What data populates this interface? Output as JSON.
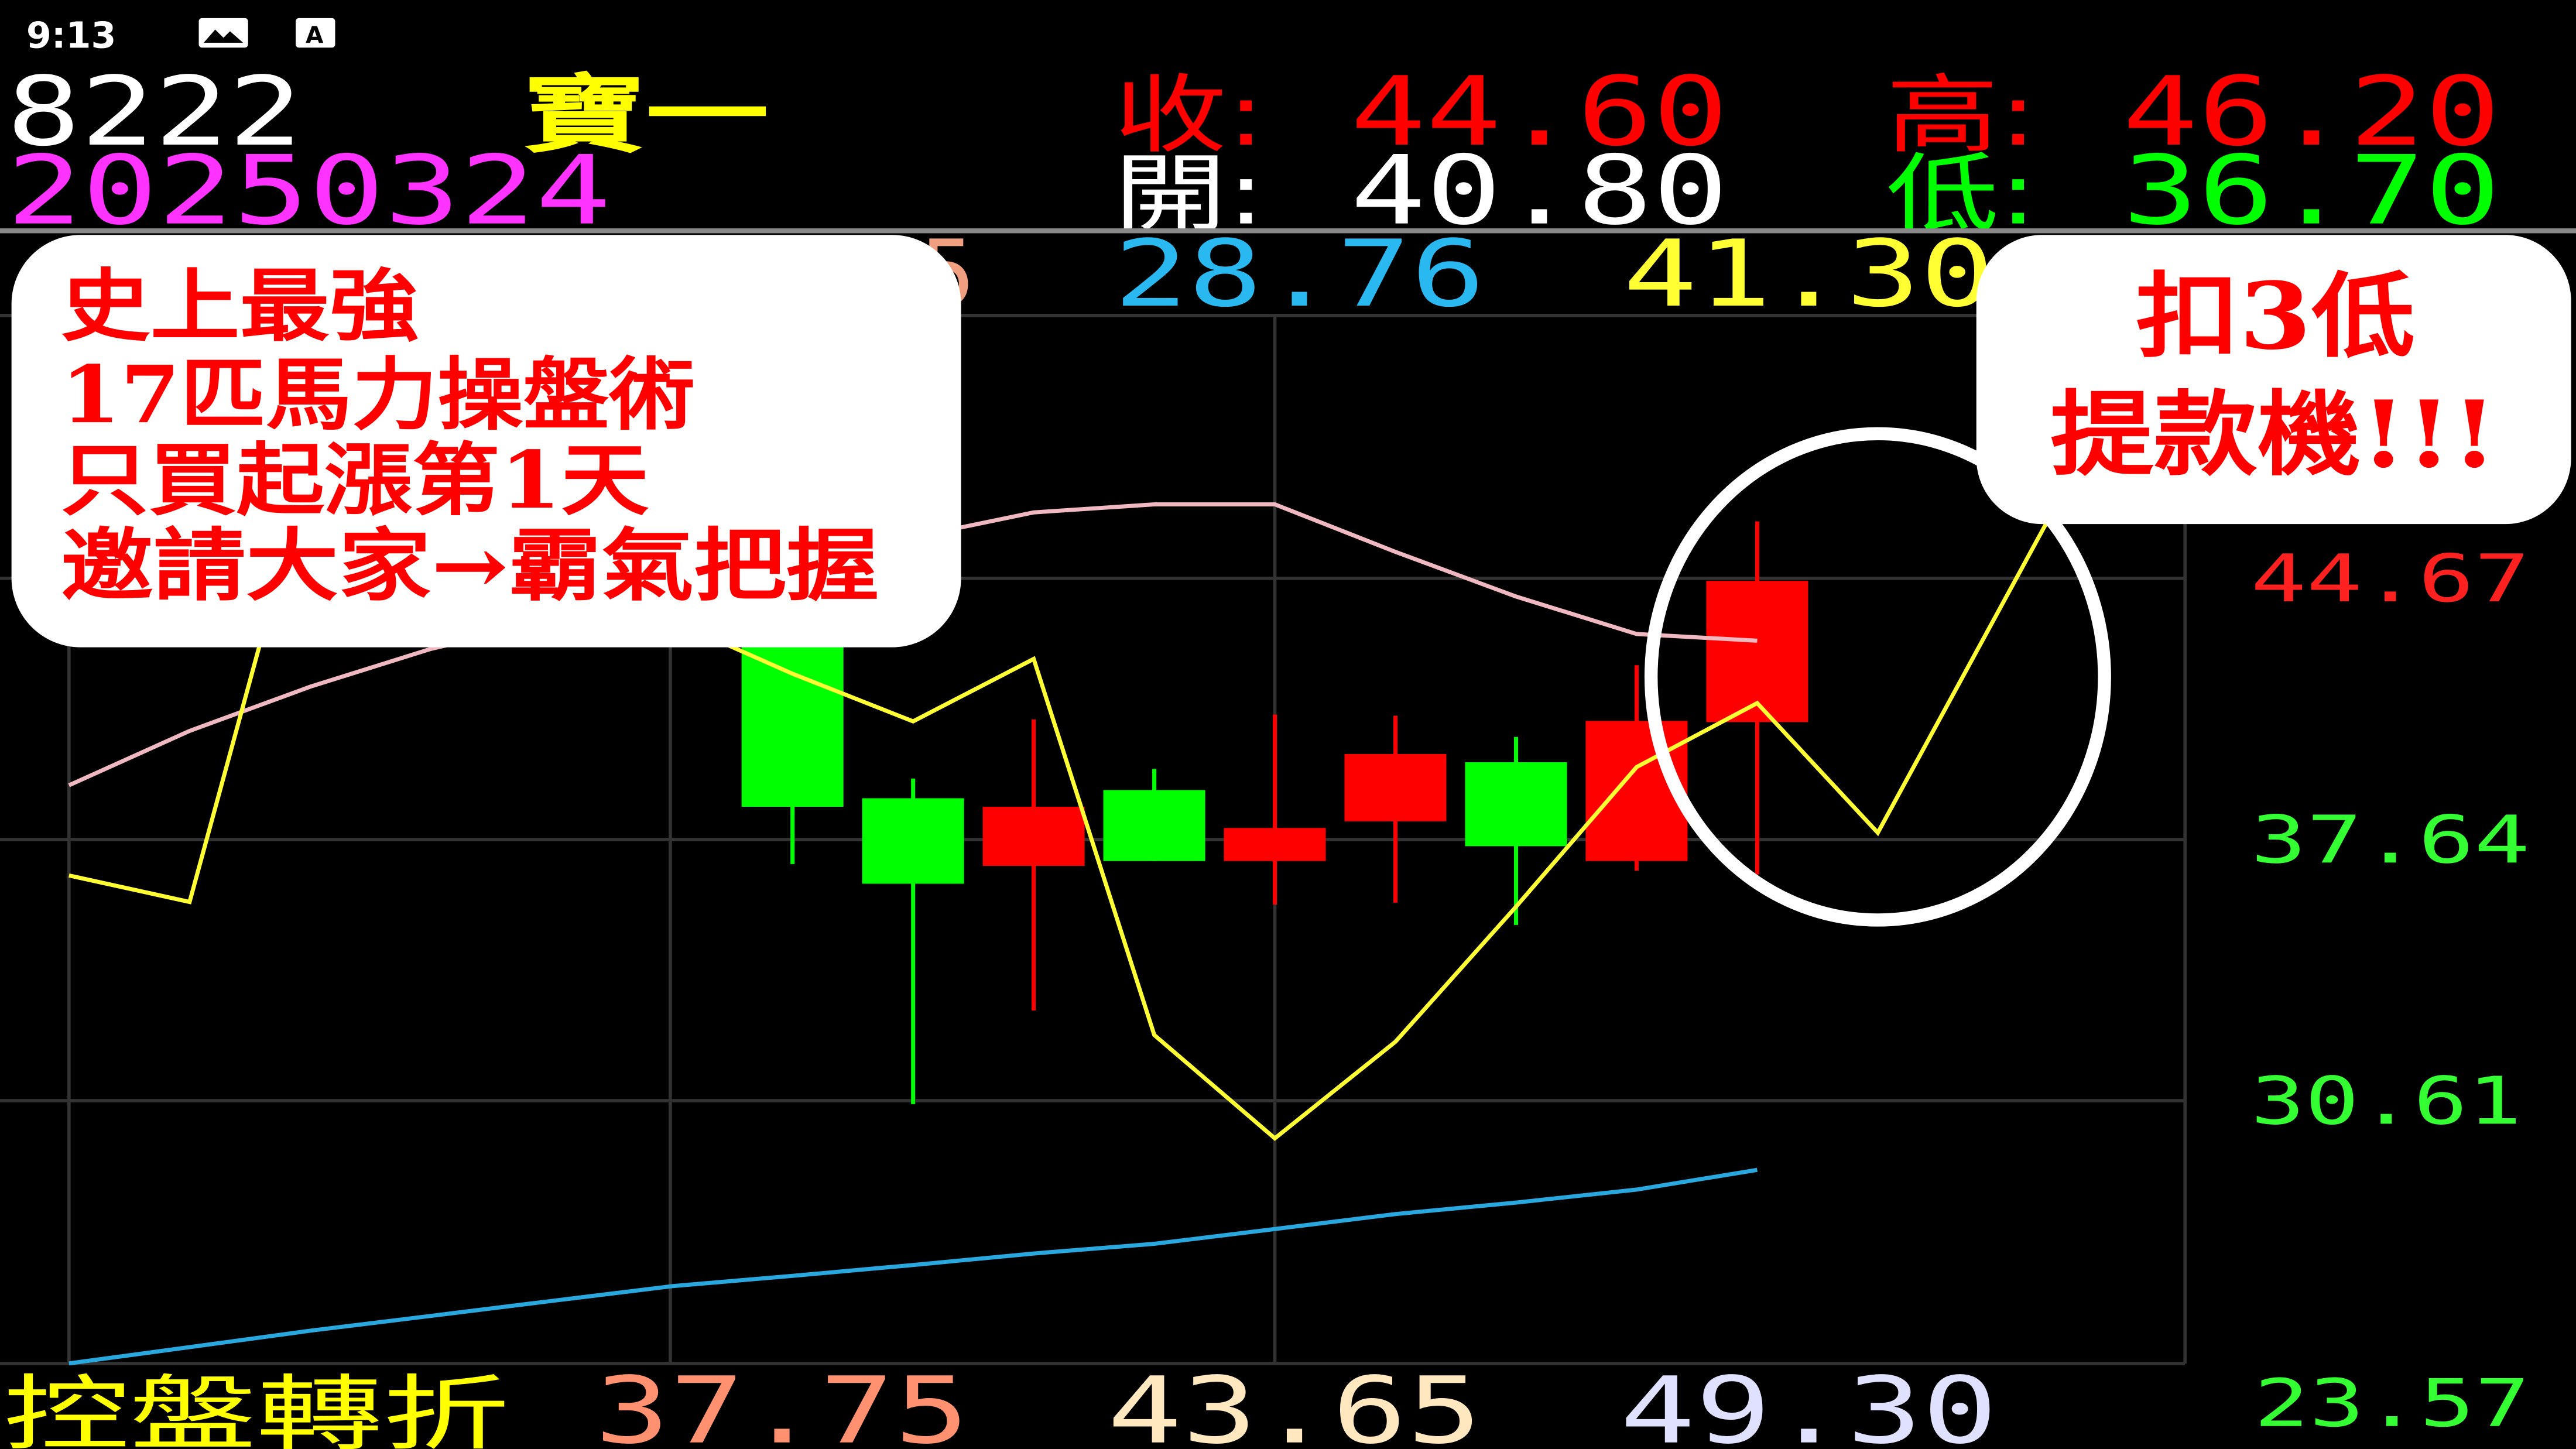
{
  "status_bar": {
    "time": "9:13",
    "icons": [
      "image-icon",
      "a-notification-icon"
    ]
  },
  "header": {
    "code": "8222",
    "name": "寶一",
    "date": "20250324",
    "close_label": "收:",
    "close": "44.60",
    "high_label": "高:",
    "high": "46.20",
    "open_label": "開:",
    "open": "40.80",
    "low_label": "低:",
    "low": "36.70"
  },
  "ma_row": {
    "first_partial": "5",
    "blue_value": "28.76",
    "yellow_value": "41.30"
  },
  "footer": {
    "label": "控盤轉折",
    "values": [
      "37.75",
      "43.65",
      "49.30"
    ]
  },
  "callout_left": {
    "lines": [
      "史上最強",
      "17匹馬力操盤術",
      "只買起漲第1天",
      "邀請大家→霸氣把握"
    ]
  },
  "callout_right": {
    "lines": [
      "扣3低",
      "提款機!!!"
    ]
  },
  "colors": {
    "up": "#ff0000",
    "down": "#00ff00",
    "ma_yellow": "#ffff33",
    "ma_pink": "#f0b8c0",
    "ma_blue": "#29a8e0",
    "date": "#ff33ff",
    "name": "#ffff00"
  },
  "chart_data": {
    "type": "candlestick",
    "y_axis": {
      "ticks": [
        "44.67",
        "37.64",
        "30.61",
        "23.57"
      ],
      "range": [
        23.57,
        49.0
      ],
      "position": "right"
    },
    "grid": true,
    "candles": [
      {
        "i": 6,
        "open": 43.0,
        "high": 43.0,
        "low": 36.98,
        "close": 38.52
      },
      {
        "i": 7,
        "open": 38.75,
        "high": 39.28,
        "low": 30.52,
        "close": 36.45
      },
      {
        "i": 8,
        "open": 36.93,
        "high": 40.87,
        "low": 33.04,
        "close": 38.52
      },
      {
        "i": 9,
        "open": 38.97,
        "high": 39.54,
        "low": 37.06,
        "close": 37.06
      },
      {
        "i": 10,
        "open": 37.06,
        "high": 41.0,
        "low": 35.89,
        "close": 37.95
      },
      {
        "i": 11,
        "open": 38.13,
        "high": 40.97,
        "low": 35.94,
        "close": 39.94
      },
      {
        "i": 12,
        "open": 39.72,
        "high": 40.4,
        "low": 35.34,
        "close": 37.46
      },
      {
        "i": 13,
        "open": 37.06,
        "high": 42.33,
        "low": 36.8,
        "close": 40.83
      },
      {
        "i": 14,
        "open": 40.8,
        "high": 46.2,
        "low": 36.7,
        "close": 44.6
      }
    ],
    "series": [
      {
        "color": "#ffff33",
        "points": [
          [
            0,
            36.67
          ],
          [
            1,
            35.96
          ],
          [
            2,
            47.85
          ],
          [
            6,
            42.1
          ],
          [
            7,
            40.82
          ],
          [
            8,
            42.5
          ],
          [
            9,
            32.38
          ],
          [
            10,
            29.6
          ],
          [
            11,
            32.2
          ],
          [
            12,
            35.83
          ],
          [
            13,
            39.59
          ],
          [
            14,
            41.31
          ],
          [
            15,
            37.82
          ],
          [
            16.4,
            46.17
          ]
        ]
      },
      {
        "color": "#f0b8c0",
        "points": [
          [
            0,
            39.1
          ],
          [
            1,
            40.56
          ],
          [
            2,
            41.75
          ],
          [
            3,
            42.77
          ],
          [
            7.4,
            46.04
          ],
          [
            8,
            46.44
          ],
          [
            9,
            46.66
          ],
          [
            10,
            46.66
          ],
          [
            11,
            45.38
          ],
          [
            12,
            44.18
          ],
          [
            13,
            43.17
          ],
          [
            14,
            42.99
          ]
        ]
      },
      {
        "color": "#29a8e0",
        "points": [
          [
            0,
            23.54
          ],
          [
            1,
            23.98
          ],
          [
            2,
            24.42
          ],
          [
            3,
            24.82
          ],
          [
            4,
            25.22
          ],
          [
            5,
            25.62
          ],
          [
            6,
            25.9
          ],
          [
            7,
            26.19
          ],
          [
            8,
            26.5
          ],
          [
            9,
            26.76
          ],
          [
            10,
            27.16
          ],
          [
            11,
            27.56
          ],
          [
            12,
            27.87
          ],
          [
            13,
            28.22
          ],
          [
            14,
            28.75
          ]
        ]
      }
    ],
    "highlight": "ellipse around last candle and projected line"
  }
}
